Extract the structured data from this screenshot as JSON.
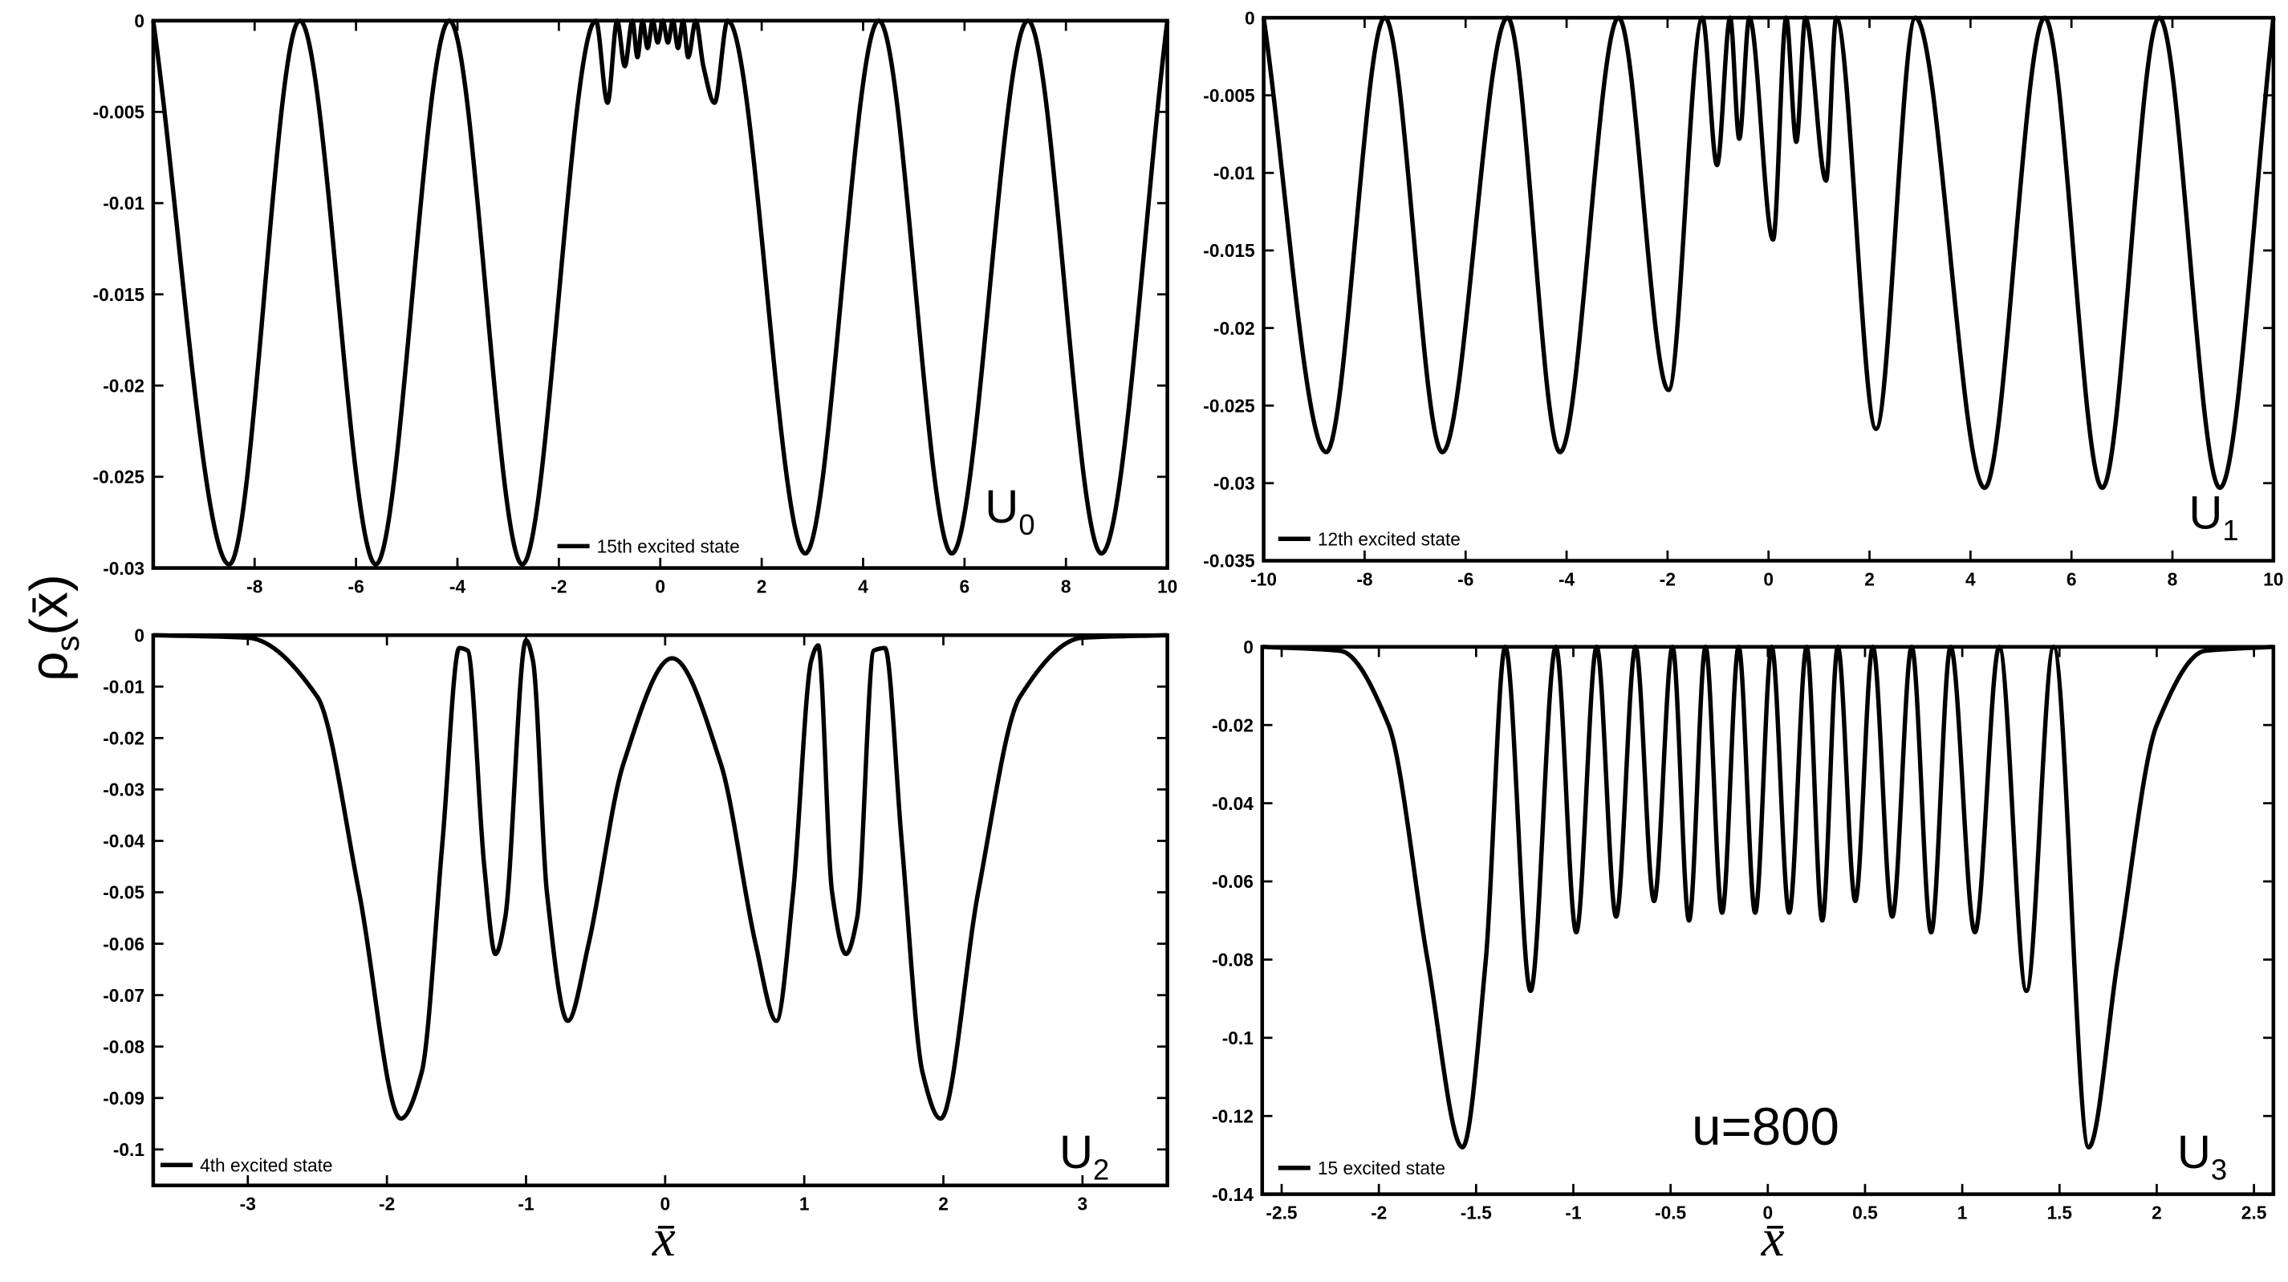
{
  "ylabel": {
    "symbol": "ρ",
    "sub": "s",
    "arg": "(x̄)"
  },
  "chart_data": [
    {
      "type": "line",
      "annotation": {
        "text": "U",
        "sub": "0"
      },
      "xlim": [
        -10,
        10
      ],
      "xticks": [
        -8,
        -6,
        -4,
        -2,
        0,
        2,
        4,
        6,
        8,
        10
      ],
      "ylim": [
        -0.03,
        0
      ],
      "yticks": [
        0,
        -0.005,
        -0.01,
        -0.015,
        -0.02,
        -0.025,
        -0.03
      ],
      "x": [
        -10,
        -8.5,
        -7.11,
        -5.61,
        -4.16,
        -2.72,
        -1.27,
        -1.04,
        -0.85,
        -0.7,
        -0.55,
        -0.45,
        -0.35,
        -0.25,
        -0.15,
        -0.05,
        0.05,
        0.15,
        0.25,
        0.35,
        0.45,
        0.55,
        0.7,
        0.85,
        1.07,
        1.33,
        2.86,
        4.31,
        5.75,
        7.25,
        8.7,
        10
      ],
      "series": [
        {
          "name": "15th excited state",
          "color": "#000000",
          "values": [
            0,
            -0.0298,
            0,
            -0.0298,
            0,
            -0.0298,
            0,
            -0.0045,
            0,
            -0.0025,
            0,
            -0.002,
            0,
            -0.0015,
            0,
            -0.0012,
            0,
            -0.0012,
            0,
            -0.0015,
            0,
            -0.002,
            0,
            -0.0025,
            -0.0045,
            0,
            -0.0292,
            0,
            -0.0292,
            0,
            -0.0292,
            0
          ]
        }
      ]
    },
    {
      "type": "line",
      "annotation": {
        "text": "U",
        "sub": "1"
      },
      "xlim": [
        -10,
        10
      ],
      "xticks": [
        -10,
        -8,
        -6,
        -4,
        -2,
        0,
        2,
        4,
        6,
        8,
        10
      ],
      "ylim": [
        -0.035,
        0
      ],
      "yticks": [
        0,
        -0.005,
        -0.01,
        -0.015,
        -0.02,
        -0.025,
        -0.03,
        -0.035
      ],
      "x": [
        -10,
        -8.76,
        -7.6,
        -6.46,
        -5.17,
        -4.13,
        -2.97,
        -1.98,
        -1.31,
        -1.02,
        -0.76,
        -0.58,
        -0.38,
        0.09,
        0.35,
        0.55,
        0.73,
        1.14,
        1.34,
        2.13,
        2.91,
        4.28,
        5.47,
        6.61,
        7.74,
        8.94,
        10
      ],
      "series": [
        {
          "name": "12th excited state",
          "color": "#000000",
          "values": [
            0,
            -0.028,
            0,
            -0.028,
            0,
            -0.028,
            0,
            -0.024,
            0,
            -0.0095,
            0,
            -0.0078,
            0,
            -0.0143,
            0,
            -0.008,
            0,
            -0.0105,
            0,
            -0.0265,
            0,
            -0.0303,
            0,
            -0.0303,
            0,
            -0.0303,
            0
          ]
        }
      ]
    },
    {
      "type": "line",
      "annotation": {
        "text": "U",
        "sub": "2"
      },
      "xlabel": "x̄",
      "xlim": [
        -3.68,
        3.61
      ],
      "xticks": [
        -3,
        -2,
        -1,
        0,
        1,
        2,
        3
      ],
      "ylim": [
        -0.107,
        0
      ],
      "yticks": [
        0,
        -0.01,
        -0.02,
        -0.03,
        -0.04,
        -0.05,
        -0.06,
        -0.07,
        -0.08,
        -0.09,
        -0.1
      ],
      "x": [
        -3.68,
        -3,
        -2.5,
        -2.2,
        -1.9,
        -1.75,
        -1.6,
        -1.48,
        -1.42,
        -1.3,
        -1.22,
        -1.15,
        -1.0,
        -0.95,
        -0.85,
        -0.7,
        -0.55,
        -0.3,
        0.05,
        0.4,
        0.65,
        0.8,
        0.92,
        1.05,
        1.1,
        1.2,
        1.3,
        1.38,
        1.5,
        1.58,
        1.7,
        1.85,
        1.98,
        2.25,
        2.55,
        3.0,
        3.61
      ],
      "series": [
        {
          "name": "4th excited state",
          "color": "#000000",
          "values": [
            0,
            -0.0005,
            -0.012,
            -0.05,
            -0.094,
            -0.085,
            -0.04,
            -0.0025,
            -0.003,
            -0.045,
            -0.062,
            -0.055,
            -0.001,
            -0.005,
            -0.05,
            -0.075,
            -0.06,
            -0.025,
            -0.0045,
            -0.025,
            -0.06,
            -0.075,
            -0.05,
            -0.005,
            -0.002,
            -0.05,
            -0.062,
            -0.055,
            -0.003,
            -0.0025,
            -0.04,
            -0.085,
            -0.094,
            -0.05,
            -0.012,
            -0.0005,
            0
          ]
        }
      ]
    },
    {
      "type": "line",
      "annotation": {
        "text": "U",
        "sub": "3"
      },
      "note": "u=800",
      "xlabel": "x̄",
      "xlim": [
        -2.6,
        2.6
      ],
      "xticks": [
        -2.5,
        -2,
        -1.5,
        -1,
        -0.5,
        0,
        0.5,
        1,
        1.5,
        2,
        2.5
      ],
      "ylim": [
        -0.14,
        0
      ],
      "yticks": [
        0,
        -0.02,
        -0.04,
        -0.06,
        -0.08,
        -0.1,
        -0.12,
        -0.14
      ],
      "x": [
        -2.6,
        -2.2,
        -1.95,
        -1.75,
        -1.57,
        -1.45,
        -1.35,
        -1.22,
        -1.09,
        -0.985,
        -0.88,
        -0.78,
        -0.68,
        -0.585,
        -0.49,
        -0.405,
        -0.32,
        -0.235,
        -0.15,
        -0.065,
        0.02,
        0.11,
        0.2,
        0.28,
        0.36,
        0.45,
        0.54,
        0.64,
        0.74,
        0.84,
        0.94,
        1.065,
        1.19,
        1.33,
        1.47,
        1.65,
        1.8,
        2.0,
        2.25,
        2.6
      ],
      "series": [
        {
          "name": "15 excited state",
          "color": "#000000",
          "values": [
            0,
            -0.001,
            -0.02,
            -0.08,
            -0.128,
            -0.08,
            0,
            -0.088,
            0,
            -0.073,
            0,
            -0.069,
            0,
            -0.065,
            0,
            -0.07,
            0,
            -0.068,
            0,
            -0.068,
            0,
            -0.068,
            0,
            -0.07,
            0,
            -0.065,
            0,
            -0.069,
            0,
            -0.073,
            0,
            -0.073,
            0,
            -0.088,
            0,
            -0.128,
            -0.08,
            -0.02,
            -0.001,
            0
          ]
        }
      ]
    }
  ]
}
